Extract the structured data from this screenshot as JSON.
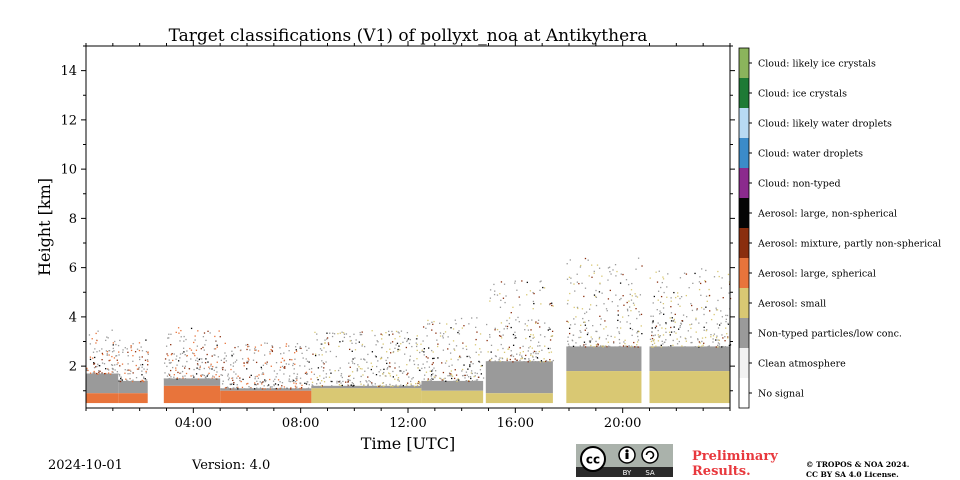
{
  "chart_data": {
    "type": "heatmap",
    "title": "Target classifications (V1) of pollyxt_noa at Antikythera",
    "xlabel": "Time [UTC]",
    "ylabel": "Height [km]",
    "xlim": [
      0,
      24
    ],
    "ylim": [
      0.3,
      15
    ],
    "x_ticks": [
      {
        "value": 4,
        "label": "04:00"
      },
      {
        "value": 8,
        "label": "08:00"
      },
      {
        "value": 12,
        "label": "12:00"
      },
      {
        "value": 16,
        "label": "16:00"
      },
      {
        "value": 20,
        "label": "20:00"
      }
    ],
    "y_ticks": [
      {
        "value": 2,
        "label": "2"
      },
      {
        "value": 4,
        "label": "4"
      },
      {
        "value": 6,
        "label": "6"
      },
      {
        "value": 8,
        "label": "8"
      },
      {
        "value": 10,
        "label": "10"
      },
      {
        "value": 12,
        "label": "12"
      },
      {
        "value": 14,
        "label": "14"
      }
    ],
    "colorbar": [
      {
        "label": "No signal",
        "color": "#ffffff"
      },
      {
        "label": "Clean atmosphere",
        "color": "#f2f2f2"
      },
      {
        "label": "Non-typed particles/low conc.",
        "color": "#9a9a9a"
      },
      {
        "label": "Aerosol: small",
        "color": "#d9c873"
      },
      {
        "label": "Aerosol: large, spherical",
        "color": "#e8743b"
      },
      {
        "label": "Aerosol: mixture, partly non-spherical",
        "color": "#8a2e0e"
      },
      {
        "label": "Aerosol: large, non-spherical",
        "color": "#050505"
      },
      {
        "label": "Cloud: non-typed",
        "color": "#8b2a8d"
      },
      {
        "label": "Cloud: water droplets",
        "color": "#3b8bc9"
      },
      {
        "label": "Cloud: likely water droplets",
        "color": "#b8daf3"
      },
      {
        "label": "Cloud: ice crystals",
        "color": "#1e7a35"
      },
      {
        "label": "Cloud: likely ice crystals",
        "color": "#8bb45c"
      }
    ],
    "segments": [
      {
        "t0": 0.0,
        "t1": 1.2,
        "base": 0.5,
        "layer_top": 0.9,
        "layer_class": "Aerosol: large, spherical",
        "dense_top": 1.7,
        "dense_class": "Non-typed particles/low conc.",
        "sparse_top": 3.5
      },
      {
        "t0": 1.2,
        "t1": 2.3,
        "base": 0.5,
        "layer_top": 0.9,
        "layer_class": "Aerosol: large, spherical",
        "dense_top": 1.4,
        "dense_class": "Non-typed particles/low conc.",
        "sparse_top": 3.2
      },
      {
        "t0": 2.9,
        "t1": 5.0,
        "base": 0.5,
        "layer_top": 1.2,
        "layer_class": "Aerosol: large, spherical",
        "dense_top": 1.5,
        "dense_class": "Non-typed particles/low conc.",
        "sparse_top": 3.6
      },
      {
        "t0": 5.0,
        "t1": 8.4,
        "base": 0.5,
        "layer_top": 1.0,
        "layer_class": "Aerosol: large, spherical",
        "dense_top": 1.1,
        "dense_class": "Non-typed particles/low conc.",
        "sparse_top": 3.0
      },
      {
        "t0": 8.4,
        "t1": 12.5,
        "base": 0.5,
        "layer_top": 1.1,
        "layer_class": "Aerosol: small",
        "dense_top": 1.2,
        "dense_class": "Non-typed particles/low conc.",
        "sparse_top": 3.5
      },
      {
        "t0": 12.5,
        "t1": 14.8,
        "base": 0.5,
        "layer_top": 1.0,
        "layer_class": "Aerosol: small",
        "dense_top": 1.4,
        "dense_class": "Non-typed particles/low conc.",
        "sparse_top": 4.0
      },
      {
        "t0": 14.9,
        "t1": 17.4,
        "base": 0.5,
        "layer_top": 0.9,
        "layer_class": "Aerosol: small",
        "dense_top": 2.2,
        "dense_class": "Non-typed particles/low conc.",
        "sparse_top": 5.5
      },
      {
        "t0": 17.9,
        "t1": 20.7,
        "base": 0.5,
        "layer_top": 1.8,
        "layer_class": "Aerosol: small",
        "dense_top": 2.8,
        "dense_class": "Non-typed particles/low conc.",
        "sparse_top": 6.5
      },
      {
        "t0": 21.0,
        "t1": 24.0,
        "base": 0.5,
        "layer_top": 1.8,
        "layer_class": "Aerosol: small",
        "dense_top": 2.8,
        "dense_class": "Non-typed particles/low conc.",
        "sparse_top": 6.0
      }
    ]
  },
  "footer": {
    "date": "2024-10-01",
    "version": "Version: 4.0",
    "preliminary_line1": "Preliminary",
    "preliminary_line2": "Results.",
    "copyright_line1": "© TROPOS & NOA 2024.",
    "copyright_line2": "CC BY SA 4.0 License."
  },
  "license_badge": {
    "text": "cc",
    "by": "BY",
    "sa": "SA"
  }
}
